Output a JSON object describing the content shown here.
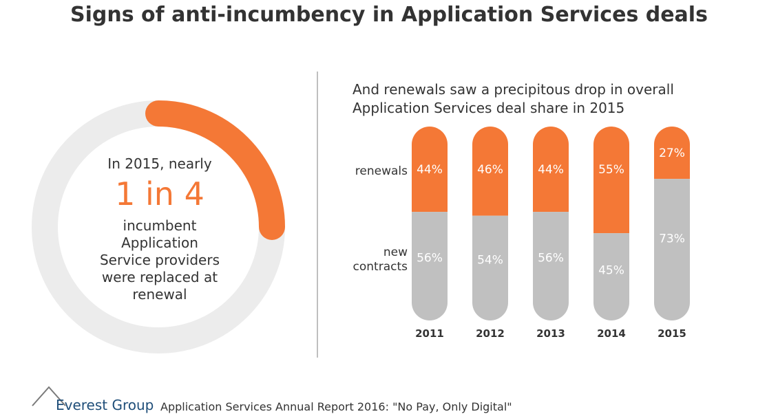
{
  "title": "Signs of anti-incumbency in Application Services deals",
  "donut": {
    "fraction": 0.25,
    "line1": "In 2015, nearly",
    "big": "1 in 4",
    "rest_lines": [
      "incumbent",
      "Application",
      "Service providers",
      "were replaced at",
      "renewal"
    ],
    "colors": {
      "accent": "#f47836",
      "track": "#ececec"
    }
  },
  "chart_subtitle": [
    "And renewals saw a precipitous drop in overall",
    "Application Services deal share in 2015"
  ],
  "chart_data": {
    "type": "bar",
    "stacked": true,
    "percent": true,
    "categories": [
      "2011",
      "2012",
      "2013",
      "2014",
      "2015"
    ],
    "series": [
      {
        "name": "renewals",
        "values": [
          44,
          46,
          44,
          55,
          27
        ],
        "labels": [
          "44%",
          "46%",
          "44%",
          "55%",
          "27%"
        ],
        "color": "#f47836"
      },
      {
        "name": "new contracts",
        "values": [
          56,
          54,
          56,
          45,
          73
        ],
        "labels": [
          "56%",
          "54%",
          "56%",
          "45%",
          "73%"
        ],
        "color": "#c0c0c0"
      }
    ],
    "ylim": [
      0,
      100
    ],
    "grid": false,
    "legend": "left"
  },
  "footer": {
    "logo_text": "Everest Group",
    "source": "Application Services Annual Report 2016: \"No Pay, Only Digital\""
  },
  "colors": {
    "text": "#333333",
    "divider": "#bfbfbf"
  }
}
